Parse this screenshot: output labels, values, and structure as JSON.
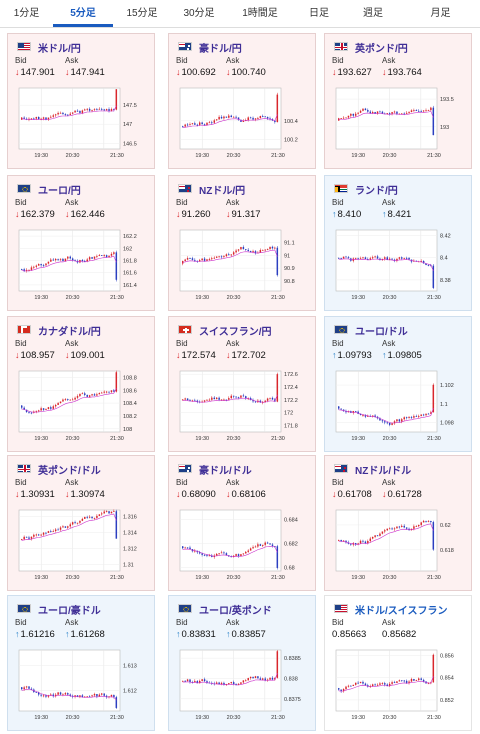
{
  "tabs": [
    {
      "label": "1分足",
      "active": false
    },
    {
      "label": "5分足",
      "active": true
    },
    {
      "label": "15分足",
      "active": false
    },
    {
      "label": "30分足",
      "active": false
    },
    {
      "label": "1時間足",
      "active": false
    },
    {
      "label": "日足",
      "active": false
    },
    {
      "label": "週足",
      "active": false
    },
    {
      "label": "月足",
      "active": false
    }
  ],
  "labels": {
    "bid": "Bid",
    "ask": "Ask"
  },
  "colors": {
    "bear_bg": "#fdf1f1",
    "bull_bg": "#eef5fc",
    "up": "#2a82c9",
    "down": "#d9262c",
    "candle_up": "#d9262c",
    "candle_down": "#2b3fc0",
    "ma": "#cc33cc",
    "pair_text": "#3f2e96",
    "active_tab": "#1a5bbf"
  },
  "quotes": [
    {
      "pair": "米ドル/円",
      "flag": "us",
      "trend": "down",
      "bid": "147.901",
      "ask": "147.941",
      "chart_data": {
        "type": "candlestick",
        "x_labels": [
          "19:30",
          "20:30",
          "21:30"
        ],
        "y_ticks": [
          "147.5",
          "147",
          "146.5"
        ],
        "y_range": [
          146.35,
          147.95
        ],
        "y_ticks_num": [
          147.5,
          147,
          146.5
        ]
      }
    },
    {
      "pair": "豪ドル/円",
      "flag": "au",
      "trend": "down",
      "bid": "100.692",
      "ask": "100.740",
      "chart_data": {
        "type": "candlestick",
        "x_labels": [
          "19:30",
          "20:30",
          "21:30"
        ],
        "y_ticks": [
          "100.4",
          "100.2"
        ],
        "y_range": [
          100.1,
          100.75
        ],
        "y_ticks_num": [
          100.4,
          100.2
        ]
      }
    },
    {
      "pair": "英ポンド/円",
      "flag": "gb",
      "trend": "down",
      "bid": "193.627",
      "ask": "193.764",
      "chart_data": {
        "type": "candlestick",
        "x_labels": [
          "19:30",
          "20:30",
          "21:30"
        ],
        "y_ticks": [
          "193.5",
          "193"
        ],
        "y_range": [
          192.6,
          193.7
        ],
        "y_ticks_num": [
          193.5,
          193
        ]
      }
    },
    {
      "pair": "ユーロ/円",
      "flag": "eu",
      "trend": "down",
      "bid": "162.379",
      "ask": "162.446",
      "chart_data": {
        "type": "candlestick",
        "x_labels": [
          "19:30",
          "20:30",
          "21:30"
        ],
        "y_ticks": [
          "162.2",
          "162",
          "161.8",
          "161.6",
          "161.4"
        ],
        "y_range": [
          161.3,
          162.3
        ],
        "y_ticks_num": [
          162.2,
          162,
          161.8,
          161.6,
          161.4
        ]
      }
    },
    {
      "pair": "NZドル/円",
      "flag": "nz",
      "trend": "down",
      "bid": "91.260",
      "ask": "91.317",
      "chart_data": {
        "type": "candlestick",
        "x_labels": [
          "19:30",
          "20:30",
          "21:30"
        ],
        "y_ticks": [
          "91.1",
          "91",
          "90.9",
          "90.8"
        ],
        "y_range": [
          90.72,
          91.2
        ],
        "y_ticks_num": [
          91.1,
          91,
          90.9,
          90.8
        ]
      }
    },
    {
      "pair": "ランド/円",
      "flag": "za",
      "trend": "up",
      "bid": "8.410",
      "ask": "8.421",
      "chart_data": {
        "type": "candlestick",
        "x_labels": [
          "19:30",
          "20:30",
          "21:30"
        ],
        "y_ticks": [
          "8.42",
          "8.4",
          "8.38"
        ],
        "y_range": [
          8.37,
          8.425
        ],
        "y_ticks_num": [
          8.42,
          8.4,
          8.38
        ]
      }
    },
    {
      "pair": "カナダドル/円",
      "flag": "ca",
      "trend": "down",
      "bid": "108.957",
      "ask": "109.001",
      "chart_data": {
        "type": "candlestick",
        "x_labels": [
          "19:30",
          "20:30",
          "21:30"
        ],
        "y_ticks": [
          "108.8",
          "108.6",
          "108.4",
          "108.2",
          "108"
        ],
        "y_range": [
          107.95,
          108.9
        ],
        "y_ticks_num": [
          108.8,
          108.6,
          108.4,
          108.2,
          108
        ]
      }
    },
    {
      "pair": "スイスフラン/円",
      "flag": "ch",
      "trend": "down",
      "bid": "172.574",
      "ask": "172.702",
      "chart_data": {
        "type": "candlestick",
        "x_labels": [
          "19:30",
          "20:30",
          "21:30"
        ],
        "y_ticks": [
          "172.6",
          "172.4",
          "172.2",
          "172",
          "171.8"
        ],
        "y_range": [
          171.7,
          172.65
        ],
        "y_ticks_num": [
          172.6,
          172.4,
          172.2,
          172,
          171.8
        ]
      }
    },
    {
      "pair": "ユーロ/ドル",
      "flag": "eu",
      "trend": "up",
      "bid": "1.09793",
      "ask": "1.09805",
      "chart_data": {
        "type": "candlestick",
        "x_labels": [
          "19:30",
          "20:30",
          "21:30"
        ],
        "y_ticks": [
          "1.102",
          "1.1",
          "1.098"
        ],
        "y_range": [
          1.097,
          1.1035
        ],
        "y_ticks_num": [
          1.102,
          1.1,
          1.098
        ]
      }
    },
    {
      "pair": "英ポンド/ドル",
      "flag": "gb",
      "trend": "down",
      "bid": "1.30931",
      "ask": "1.30974",
      "chart_data": {
        "type": "candlestick",
        "x_labels": [
          "19:30",
          "20:30",
          "21:30"
        ],
        "y_ticks": [
          "1.316",
          "1.314",
          "1.312",
          "1.31"
        ],
        "y_range": [
          1.3092,
          1.3168
        ],
        "y_ticks_num": [
          1.316,
          1.314,
          1.312,
          1.31
        ]
      }
    },
    {
      "pair": "豪ドル/ドル",
      "flag": "au",
      "trend": "down",
      "bid": "0.68090",
      "ask": "0.68106",
      "chart_data": {
        "type": "candlestick",
        "x_labels": [
          "19:30",
          "20:30",
          "21:30"
        ],
        "y_ticks": [
          "0.684",
          "0.682",
          "0.68"
        ],
        "y_range": [
          0.6797,
          0.6848
        ],
        "y_ticks_num": [
          0.684,
          0.682,
          0.68
        ]
      }
    },
    {
      "pair": "NZドル/ドル",
      "flag": "nz",
      "trend": "down",
      "bid": "0.61708",
      "ask": "0.61728",
      "chart_data": {
        "type": "candlestick",
        "x_labels": [
          "19:30",
          "20:30",
          "21:30"
        ],
        "y_ticks": [
          "0.62",
          "0.618"
        ],
        "y_range": [
          0.6163,
          0.6212
        ],
        "y_ticks_num": [
          0.62,
          0.618
        ]
      }
    },
    {
      "pair": "ユーロ/豪ドル",
      "flag": "eu",
      "trend": "up",
      "bid": "1.61216",
      "ask": "1.61268",
      "chart_data": {
        "type": "candlestick",
        "x_labels": [
          "19:30",
          "20:30",
          "21:30"
        ],
        "y_ticks": [
          "1.613",
          "1.612"
        ],
        "y_range": [
          1.6112,
          1.6136
        ],
        "y_ticks_num": [
          1.613,
          1.612
        ]
      }
    },
    {
      "pair": "ユーロ/英ポンド",
      "flag": "eu",
      "trend": "up",
      "bid": "0.83831",
      "ask": "0.83857",
      "chart_data": {
        "type": "candlestick",
        "x_labels": [
          "19:30",
          "20:30",
          "21:30"
        ],
        "y_ticks": [
          "0.8385",
          "0.838",
          "0.8375"
        ],
        "y_range": [
          0.8372,
          0.8387
        ],
        "y_ticks_num": [
          0.8385,
          0.838,
          0.8375
        ]
      }
    },
    {
      "pair": "米ドル/スイスフラン",
      "flag": "us",
      "trend": "neutral",
      "bid": "0.85663",
      "ask": "0.85682",
      "chart_data": {
        "type": "candlestick",
        "x_labels": [
          "19:30",
          "20:30",
          "21:30"
        ],
        "y_ticks": [
          "0.856",
          "0.854",
          "0.852"
        ],
        "y_range": [
          0.851,
          0.8565
        ],
        "y_ticks_num": [
          0.856,
          0.854,
          0.852
        ]
      }
    }
  ]
}
